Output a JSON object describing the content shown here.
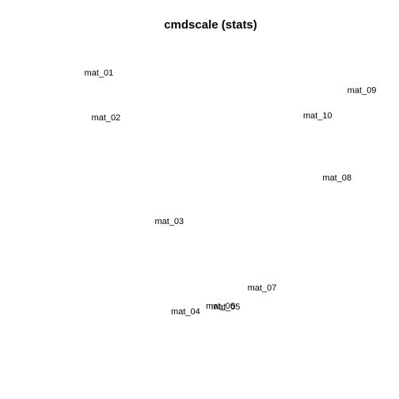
{
  "chart_data": {
    "type": "scatter",
    "title": "cmdscale (stats)",
    "xlabel": "",
    "ylabel": "",
    "axes_visible": false,
    "grid": false,
    "marker": "text-label",
    "xlim": [
      -1.0,
      1.0
    ],
    "ylim": [
      -1.0,
      1.0
    ],
    "points": [
      {
        "label": "mat_01",
        "x": -0.805,
        "y": 0.88
      },
      {
        "label": "mat_02",
        "x": -0.756,
        "y": 0.553
      },
      {
        "label": "mat_03",
        "x": -0.322,
        "y": -0.209
      },
      {
        "label": "mat_04",
        "x": -0.21,
        "y": -0.873
      },
      {
        "label": "mat_05",
        "x": 0.066,
        "y": -0.836
      },
      {
        "label": "mat_06",
        "x": 0.03,
        "y": -0.832
      },
      {
        "label": "mat_07",
        "x": 0.315,
        "y": -0.698
      },
      {
        "label": "mat_08",
        "x": 0.83,
        "y": 0.111
      },
      {
        "label": "mat_09",
        "x": 1.0,
        "y": 0.754
      },
      {
        "label": "mat_10",
        "x": 0.697,
        "y": 0.567
      }
    ]
  }
}
